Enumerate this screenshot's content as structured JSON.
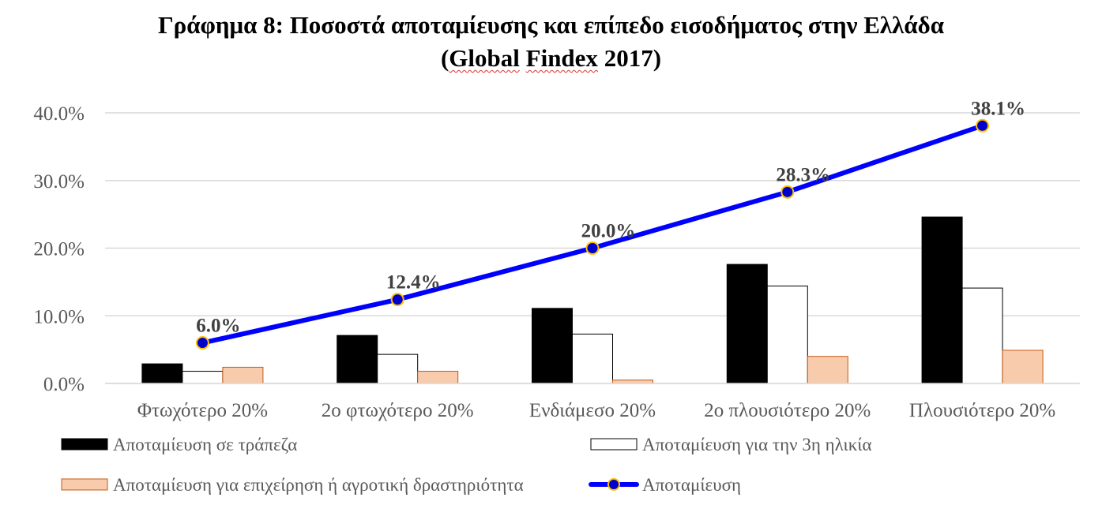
{
  "chart_data": {
    "type": "bar",
    "title_line1": "Γράφημα 8: Ποσοστά αποταμίευσης και επίπεδο εισοδήματος στην Ελλάδα",
    "title_line2_parts": [
      "(",
      "Global",
      " ",
      "Findex",
      " 2017)"
    ],
    "categories": [
      "Φτωχότερο 20%",
      "2ο φτωχότερο 20%",
      "Ενδιάμεσο 20%",
      "2ο πλουσιότερο 20%",
      "Πλουσιότερο 20%"
    ],
    "y_ticks": [
      "0.0%",
      "10.0%",
      "20.0%",
      "30.0%",
      "40.0%"
    ],
    "ylim": [
      0,
      40
    ],
    "grid": true,
    "legend_position": "bottom",
    "series": [
      {
        "name": "Αποταμίευση σε τράπεζα",
        "kind": "bar",
        "color": "#000000",
        "values": [
          2.9,
          7.1,
          11.1,
          17.6,
          24.6
        ]
      },
      {
        "name": "Αποταμίευση για την 3η ηλικία",
        "kind": "bar",
        "color": "#ffffff",
        "values": [
          1.8,
          4.3,
          7.3,
          14.4,
          14.1
        ]
      },
      {
        "name": "Αποταμίευση για επιχείρηση ή αγροτική δραστηριότητα",
        "kind": "bar",
        "color": "#f8cbad",
        "values": [
          2.4,
          1.8,
          0.5,
          4.0,
          4.9
        ]
      },
      {
        "name": "Αποταμίευση",
        "kind": "line",
        "color": "#0000ff",
        "marker_color": "#ffc000",
        "values": [
          6.0,
          12.4,
          20.0,
          28.3,
          38.1
        ],
        "labels": [
          "6.0%",
          "12.4%",
          "20.0%",
          "28.3%",
          "38.1%"
        ]
      }
    ]
  }
}
